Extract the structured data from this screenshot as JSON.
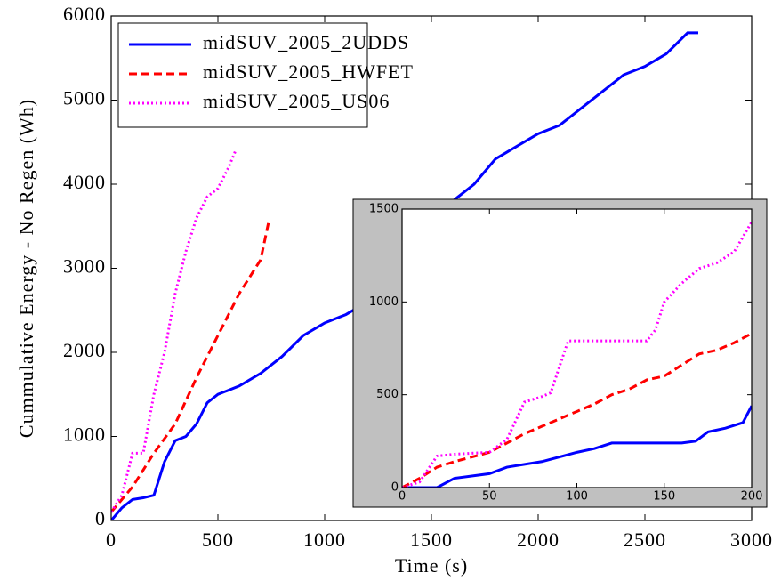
{
  "chart_data": [
    {
      "type": "line",
      "xlabel": "Time (s)",
      "ylabel": "Cummulative Energy - No Regen (Wh)",
      "xlim": [
        0,
        3000
      ],
      "ylim": [
        0,
        6000
      ],
      "xticks": [
        0,
        500,
        1000,
        1500,
        2000,
        2500,
        3000
      ],
      "yticks": [
        0,
        1000,
        2000,
        3000,
        4000,
        5000,
        6000
      ],
      "legend": "upper left",
      "series": [
        {
          "name": "midSUV_2005_2UDDS",
          "color": "#0000ff",
          "linestyle": "solid",
          "x": [
            0,
            50,
            100,
            150,
            200,
            250,
            300,
            350,
            400,
            450,
            500,
            600,
            700,
            800,
            900,
            1000,
            1100,
            1200,
            1300,
            1400,
            1500,
            1600,
            1700,
            1800,
            1900,
            2000,
            2100,
            2200,
            2300,
            2400,
            2500,
            2600,
            2700,
            2750
          ],
          "values": [
            0,
            150,
            250,
            270,
            300,
            700,
            950,
            1000,
            1150,
            1400,
            1500,
            1600,
            1750,
            1950,
            2200,
            2350,
            2450,
            2600,
            2900,
            3200,
            3500,
            3800,
            4000,
            4300,
            4450,
            4600,
            4700,
            4900,
            5100,
            5300,
            5400,
            5550,
            5800,
            5800
          ]
        },
        {
          "name": "midSUV_2005_HWFET",
          "color": "#ff0000",
          "linestyle": "dashed",
          "x": [
            0,
            100,
            200,
            300,
            400,
            500,
            600,
            700,
            740
          ],
          "values": [
            100,
            400,
            800,
            1150,
            1700,
            2200,
            2700,
            3100,
            3580
          ]
        },
        {
          "name": "midSUV_2005_US06",
          "color": "#ff00ff",
          "linestyle": "dotted",
          "x": [
            0,
            50,
            100,
            150,
            200,
            250,
            300,
            350,
            400,
            450,
            500,
            550,
            583
          ],
          "values": [
            100,
            300,
            800,
            800,
            1500,
            2000,
            2700,
            3200,
            3600,
            3850,
            3950,
            4200,
            4400
          ]
        }
      ]
    },
    {
      "type": "line",
      "xlim": [
        0,
        200
      ],
      "ylim": [
        0,
        1500
      ],
      "xticks": [
        0,
        50,
        100,
        150,
        200
      ],
      "yticks": [
        0,
        500,
        1000,
        1500
      ],
      "series": [
        {
          "color": "#0000ff",
          "linestyle": "solid",
          "x": [
            0,
            20,
            30,
            50,
            60,
            80,
            100,
            110,
            120,
            140,
            160,
            168,
            175,
            185,
            195,
            200
          ],
          "values": [
            0,
            0,
            50,
            75,
            110,
            140,
            190,
            210,
            240,
            240,
            240,
            250,
            300,
            320,
            350,
            440
          ]
        },
        {
          "color": "#ff0000",
          "linestyle": "dashed",
          "x": [
            0,
            10,
            20,
            30,
            50,
            60,
            70,
            80,
            90,
            100,
            110,
            120,
            130,
            140,
            150,
            160,
            170,
            180,
            190,
            200
          ],
          "values": [
            0,
            50,
            110,
            140,
            190,
            240,
            290,
            330,
            370,
            410,
            450,
            500,
            530,
            580,
            600,
            660,
            720,
            740,
            780,
            830
          ]
        },
        {
          "color": "#ff00ff",
          "linestyle": "dotted",
          "x": [
            0,
            10,
            20,
            30,
            50,
            60,
            70,
            80,
            85,
            95,
            140,
            145,
            150,
            160,
            170,
            180,
            190,
            200
          ],
          "values": [
            0,
            30,
            170,
            180,
            190,
            260,
            460,
            490,
            510,
            790,
            790,
            850,
            1000,
            1100,
            1180,
            1210,
            1270,
            1430
          ]
        }
      ]
    }
  ]
}
